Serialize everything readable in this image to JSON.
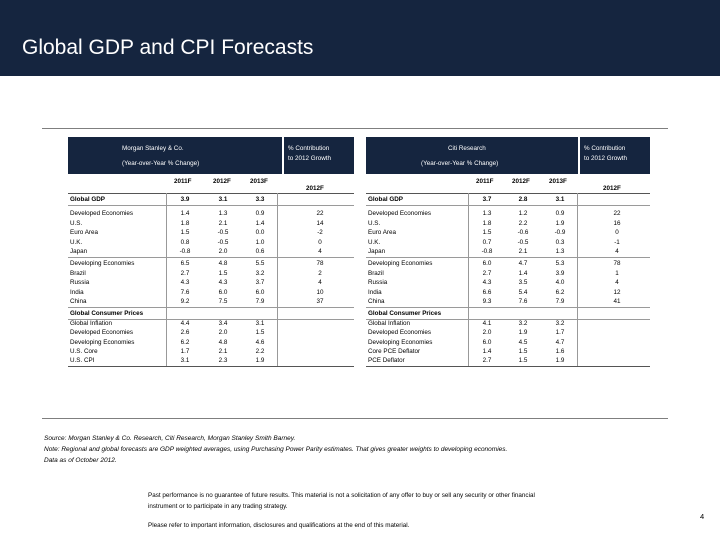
{
  "title": "Global GDP and CPI Forecasts",
  "left_table": {
    "header_title": "Morgan Stanley & Co.",
    "header_subtitle": "(Year-over-Year % Change)",
    "contrib_header_line1": "% Contribution",
    "contrib_header_line2": "to 2012 Growth",
    "years": [
      "2011F",
      "2012F",
      "2013F"
    ],
    "contrib_year": "2012F",
    "rows": [
      {
        "label": "Global GDP",
        "v": [
          "3.9",
          "3.1",
          "3.3"
        ],
        "c": "",
        "bold": true
      },
      {
        "label": "Developed Economies",
        "v": [
          "1.4",
          "1.3",
          "0.9"
        ],
        "c": "22",
        "bold": false
      },
      {
        "label": "U.S.",
        "v": [
          "1.8",
          "2.1",
          "1.4"
        ],
        "c": "14",
        "bold": false
      },
      {
        "label": "Euro Area",
        "v": [
          "1.5",
          "-0.5",
          "0.0"
        ],
        "c": "-2",
        "bold": false
      },
      {
        "label": "U.K.",
        "v": [
          "0.8",
          "-0.5",
          "1.0"
        ],
        "c": "0",
        "bold": false
      },
      {
        "label": "Japan",
        "v": [
          "-0.8",
          "2.0",
          "0.6"
        ],
        "c": "4",
        "bold": false
      },
      {
        "label": "Developing Economies",
        "v": [
          "6.5",
          "4.8",
          "5.5"
        ],
        "c": "78",
        "bold": false
      },
      {
        "label": "Brazil",
        "v": [
          "2.7",
          "1.5",
          "3.2"
        ],
        "c": "2",
        "bold": false
      },
      {
        "label": "Russia",
        "v": [
          "4.3",
          "4.3",
          "3.7"
        ],
        "c": "4",
        "bold": false
      },
      {
        "label": "India",
        "v": [
          "7.6",
          "6.0",
          "6.0"
        ],
        "c": "10",
        "bold": false
      },
      {
        "label": "China",
        "v": [
          "9.2",
          "7.5",
          "7.9"
        ],
        "c": "37",
        "bold": false
      },
      {
        "label": "Global Consumer Prices",
        "v": [
          "",
          "",
          ""
        ],
        "c": "",
        "bold": true
      },
      {
        "label": "Global Inflation",
        "v": [
          "4.4",
          "3.4",
          "3.1"
        ],
        "c": "",
        "bold": false
      },
      {
        "label": "Developed Economies",
        "v": [
          "2.6",
          "2.0",
          "1.5"
        ],
        "c": "",
        "bold": false
      },
      {
        "label": "Developing Economies",
        "v": [
          "6.2",
          "4.8",
          "4.6"
        ],
        "c": "",
        "bold": false
      },
      {
        "label": "U.S. Core",
        "v": [
          "1.7",
          "2.1",
          "2.2"
        ],
        "c": "",
        "bold": false
      },
      {
        "label": "U.S. CPI",
        "v": [
          "3.1",
          "2.3",
          "1.9"
        ],
        "c": "",
        "bold": false
      }
    ]
  },
  "right_table": {
    "header_title": "Citi Research",
    "header_subtitle": "(Year-over-Year % Change)",
    "contrib_header_line1": "% Contribution",
    "contrib_header_line2": "to 2012 Growth",
    "years": [
      "2011F",
      "2012F",
      "2013F"
    ],
    "contrib_year": "2012F",
    "rows": [
      {
        "label": "Global GDP",
        "v": [
          "3.7",
          "2.8",
          "3.1"
        ],
        "c": "",
        "bold": true
      },
      {
        "label": "Developed Economies",
        "v": [
          "1.3",
          "1.2",
          "0.9"
        ],
        "c": "22",
        "bold": false
      },
      {
        "label": "U.S.",
        "v": [
          "1.8",
          "2.2",
          "1.9"
        ],
        "c": "16",
        "bold": false
      },
      {
        "label": "Euro Area",
        "v": [
          "1.5",
          "-0.6",
          "-0.9"
        ],
        "c": "0",
        "bold": false
      },
      {
        "label": "U.K.",
        "v": [
          "0.7",
          "-0.5",
          "0.3"
        ],
        "c": "-1",
        "bold": false
      },
      {
        "label": "Japan",
        "v": [
          "-0.8",
          "2.1",
          "1.3"
        ],
        "c": "4",
        "bold": false
      },
      {
        "label": "Developing Economies",
        "v": [
          "6.0",
          "4.7",
          "5.3"
        ],
        "c": "78",
        "bold": false
      },
      {
        "label": "Brazil",
        "v": [
          "2.7",
          "1.4",
          "3.9"
        ],
        "c": "1",
        "bold": false
      },
      {
        "label": "Russia",
        "v": [
          "4.3",
          "3.5",
          "4.0"
        ],
        "c": "4",
        "bold": false
      },
      {
        "label": "India",
        "v": [
          "6.6",
          "5.4",
          "6.2"
        ],
        "c": "12",
        "bold": false
      },
      {
        "label": "China",
        "v": [
          "9.3",
          "7.6",
          "7.9"
        ],
        "c": "41",
        "bold": false
      },
      {
        "label": "Global Consumer Prices",
        "v": [
          "",
          "",
          ""
        ],
        "c": "",
        "bold": true
      },
      {
        "label": "Global Inflation",
        "v": [
          "4.1",
          "3.2",
          "3.2"
        ],
        "c": "",
        "bold": false
      },
      {
        "label": "Developed Economies",
        "v": [
          "2.0",
          "1.9",
          "1.7"
        ],
        "c": "",
        "bold": false
      },
      {
        "label": "Developing Economies",
        "v": [
          "6.0",
          "4.5",
          "4.7"
        ],
        "c": "",
        "bold": false
      },
      {
        "label": "Core PCE Deflator",
        "v": [
          "1.4",
          "1.5",
          "1.6"
        ],
        "c": "",
        "bold": false
      },
      {
        "label": "PCE Deflator",
        "v": [
          "2.7",
          "1.5",
          "1.9"
        ],
        "c": "",
        "bold": false
      }
    ]
  },
  "footnotes": {
    "source": "Source: Morgan Stanley & Co. Research, Citi Research, Morgan Stanley Smith Barney.",
    "note": "Note: Regional and global forecasts are GDP weighted averages, using Purchasing Power Parity estimates. That gives greater weights to developing economies.",
    "date": " Data as of October 2012."
  },
  "disclaimer": {
    "line1": "Past performance is no guarantee of future results. This material is not a solicitation of any offer to buy or sell any security or other financial",
    "line2": "instrument or to participate in any trading strategy.",
    "line3": "Please refer to important information, disclosures and qualifications at the end of this material."
  },
  "page_number": "4"
}
